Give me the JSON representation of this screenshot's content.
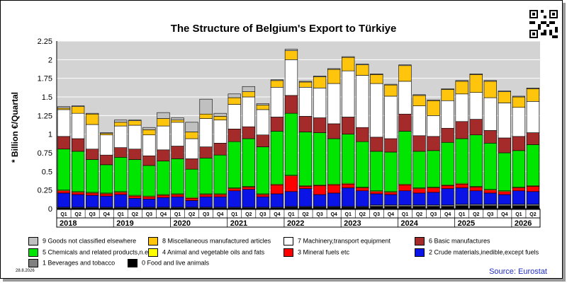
{
  "title": "The Structure of Belgium's Export to Türkiye",
  "ylabel": "* Billion €/Quartal",
  "date_note": "28.8.2026",
  "source": "Source: Eurostat",
  "chart_data": {
    "type": "bar",
    "stacked": true,
    "ylim": [
      0,
      2.25
    ],
    "yticks": [
      "0",
      "0.25",
      "0.5",
      "0.75",
      "1",
      "1.25",
      "1.5",
      "1.75",
      "2",
      "2.25"
    ],
    "categories": [
      "Q1",
      "Q2",
      "Q3",
      "Q4",
      "Q1",
      "Q2",
      "Q3",
      "Q4",
      "Q1",
      "Q2",
      "Q3",
      "Q4",
      "Q1",
      "Q2",
      "Q3",
      "Q4",
      "Q1",
      "Q2",
      "Q3",
      "Q4",
      "Q1",
      "Q2",
      "Q3",
      "Q4",
      "Q1",
      "Q2",
      "Q3",
      "Q4",
      "Q1",
      "Q2",
      "Q3",
      "Q4",
      "Q1",
      "Q2"
    ],
    "years": [
      "2018",
      "2019",
      "2020",
      "2021",
      "2022",
      "2023",
      "2024",
      "2025",
      "2026"
    ],
    "series": [
      {
        "name": "0 Food and live animals",
        "color": "#000000",
        "values": [
          0.01,
          0.01,
          0.01,
          0.01,
          0.01,
          0.01,
          0.01,
          0.01,
          0.01,
          0.01,
          0.01,
          0.01,
          0.01,
          0.01,
          0.01,
          0.01,
          0.02,
          0.02,
          0.02,
          0.02,
          0.02,
          0.02,
          0.03,
          0.03,
          0.03,
          0.03,
          0.03,
          0.03,
          0.04,
          0.04,
          0.04,
          0.04,
          0.04,
          0.04
        ]
      },
      {
        "name": "1 Beverages and tobacco",
        "color": "#808080",
        "values": [
          0.01,
          0.01,
          0.01,
          0.01,
          0.01,
          0.01,
          0.01,
          0.01,
          0.01,
          0.01,
          0.01,
          0.01,
          0.01,
          0.01,
          0.01,
          0.01,
          0.01,
          0.01,
          0.01,
          0.01,
          0.01,
          0.01,
          0.02,
          0.02,
          0.02,
          0.02,
          0.02,
          0.02,
          0.02,
          0.02,
          0.02,
          0.02,
          0.02,
          0.02
        ]
      },
      {
        "name": "2 Crude materials,inedible,except fuels",
        "color": "#0a14e6",
        "values": [
          0.19,
          0.17,
          0.16,
          0.15,
          0.17,
          0.12,
          0.11,
          0.13,
          0.14,
          0.09,
          0.14,
          0.14,
          0.22,
          0.24,
          0.14,
          0.18,
          0.2,
          0.24,
          0.16,
          0.18,
          0.25,
          0.21,
          0.15,
          0.14,
          0.19,
          0.16,
          0.17,
          0.22,
          0.22,
          0.18,
          0.15,
          0.13,
          0.18,
          0.17
        ]
      },
      {
        "name": "3 Mineral fuels etc",
        "color": "#ff0000",
        "values": [
          0.03,
          0.03,
          0.03,
          0.03,
          0.03,
          0.03,
          0.03,
          0.03,
          0.03,
          0.03,
          0.03,
          0.03,
          0.03,
          0.03,
          0.03,
          0.12,
          0.21,
          0.03,
          0.12,
          0.11,
          0.05,
          0.04,
          0.03,
          0.03,
          0.08,
          0.06,
          0.06,
          0.04,
          0.05,
          0.05,
          0.04,
          0.04,
          0.04,
          0.07
        ]
      },
      {
        "name": "4 Animal and vegetable oils and fats",
        "color": "#ffff00",
        "values": [
          0.01,
          0.01,
          0.01,
          0.01,
          0.01,
          0.01,
          0.01,
          0.01,
          0.01,
          0.01,
          0.01,
          0.01,
          0.01,
          0.01,
          0.01,
          0.01,
          0.01,
          0.01,
          0.01,
          0.01,
          0.01,
          0.01,
          0.01,
          0.01,
          0.01,
          0.01,
          0.01,
          0.01,
          0.01,
          0.01,
          0.01,
          0.01,
          0.01,
          0.01
        ]
      },
      {
        "name": "5 Chemicals and related products,n.e.s.",
        "color": "#00e600",
        "values": [
          0.55,
          0.54,
          0.44,
          0.38,
          0.46,
          0.48,
          0.41,
          0.45,
          0.47,
          0.38,
          0.48,
          0.52,
          0.62,
          0.64,
          0.63,
          0.71,
          0.83,
          0.72,
          0.7,
          0.61,
          0.66,
          0.61,
          0.53,
          0.53,
          0.71,
          0.49,
          0.49,
          0.57,
          0.6,
          0.69,
          0.62,
          0.51,
          0.49,
          0.55
        ]
      },
      {
        "name": "6 Basic manufactures",
        "color": "#a52a2a",
        "values": [
          0.17,
          0.17,
          0.14,
          0.13,
          0.13,
          0.14,
          0.13,
          0.15,
          0.17,
          0.14,
          0.15,
          0.16,
          0.17,
          0.16,
          0.16,
          0.19,
          0.24,
          0.21,
          0.2,
          0.2,
          0.23,
          0.19,
          0.19,
          0.18,
          0.23,
          0.21,
          0.19,
          0.19,
          0.23,
          0.21,
          0.17,
          0.2,
          0.19,
          0.16
        ]
      },
      {
        "name": "7 Machinery,transport equipment",
        "color": "#ffffff",
        "values": [
          0.36,
          0.34,
          0.33,
          0.27,
          0.29,
          0.32,
          0.28,
          0.32,
          0.32,
          0.27,
          0.38,
          0.31,
          0.33,
          0.4,
          0.34,
          0.4,
          0.48,
          0.39,
          0.4,
          0.54,
          0.62,
          0.7,
          0.72,
          0.57,
          0.44,
          0.4,
          0.28,
          0.37,
          0.37,
          0.36,
          0.44,
          0.47,
          0.39,
          0.42
        ]
      },
      {
        "name": "8 Miscellaneous manufactured articles",
        "color": "#ffc40c",
        "values": [
          0.02,
          0.09,
          0.14,
          0.02,
          0.05,
          0.06,
          0.07,
          0.1,
          0.03,
          0.09,
          0.06,
          0.05,
          0.09,
          0.07,
          0.06,
          0.09,
          0.12,
          0.07,
          0.15,
          0.19,
          0.18,
          0.14,
          0.12,
          0.15,
          0.21,
          0.14,
          0.2,
          0.15,
          0.17,
          0.24,
          0.22,
          0.15,
          0.14,
          0.17
        ]
      },
      {
        "name": "9 Goods not classified elsewhere",
        "color": "#c0c0c0",
        "values": [
          0.02,
          0.01,
          0.01,
          0.01,
          0.03,
          0.01,
          0.03,
          0.08,
          0.03,
          0.13,
          0.2,
          0.04,
          0.05,
          0.07,
          0.02,
          0.01,
          0.02,
          0.01,
          0.01,
          0.01,
          0.01,
          0.01,
          0.01,
          0.01,
          0.01,
          0.01,
          0.01,
          0.01,
          0.01,
          0.01,
          0.01,
          0.01,
          0.01,
          0.01
        ]
      }
    ],
    "legend_order": [
      9,
      8,
      7,
      6,
      5,
      4,
      3,
      2,
      1,
      0
    ]
  }
}
